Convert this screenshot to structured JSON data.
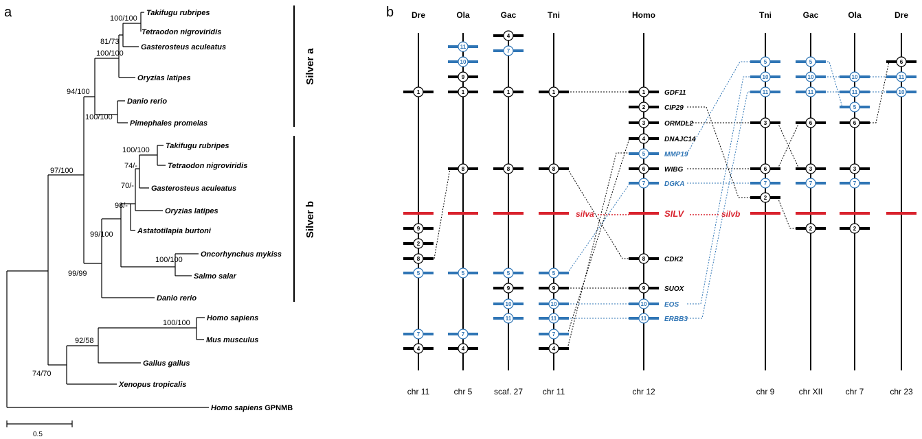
{
  "panel_a": {
    "label": "a",
    "tree_taxa": [
      {
        "id": "tr1",
        "name": "Takifugu rubripes"
      },
      {
        "id": "tn1",
        "name": "Tetraodon nigroviridis"
      },
      {
        "id": "ga1",
        "name": "Gasterosteus aculeatus"
      },
      {
        "id": "ol1",
        "name": "Oryzias latipes"
      },
      {
        "id": "dr1",
        "name": "Danio rerio"
      },
      {
        "id": "pp1",
        "name": "Pimephales promelas"
      },
      {
        "id": "tr2",
        "name": "Takifugu rubripes"
      },
      {
        "id": "tn2",
        "name": "Tetraodon nigroviridis"
      },
      {
        "id": "ga2",
        "name": "Gasterosteus aculeatus"
      },
      {
        "id": "ol2",
        "name": "Oryzias latipes"
      },
      {
        "id": "ab2",
        "name": "Astatotilapia burtoni"
      },
      {
        "id": "om2",
        "name": "Oncorhynchus mykiss"
      },
      {
        "id": "ss2",
        "name": "Salmo salar"
      },
      {
        "id": "dr2",
        "name": "Danio rerio"
      },
      {
        "id": "hs",
        "name": "Homo sapiens"
      },
      {
        "id": "mm",
        "name": "Mus musculus"
      },
      {
        "id": "gg",
        "name": "Gallus gallus"
      },
      {
        "id": "xt",
        "name": "Xenopus tropicalis"
      }
    ],
    "outgroup": {
      "species": "Homo sapiens",
      "gene": "GPNMB"
    },
    "support": [
      {
        "id": "fugu_tetra_a",
        "value": "100/100"
      },
      {
        "id": "gasterosteus_a",
        "value": "81/73"
      },
      {
        "id": "oryzias_a",
        "value": "100/100"
      },
      {
        "id": "silver_a",
        "value": "94/100"
      },
      {
        "id": "cyprinid_a",
        "value": "100/100"
      },
      {
        "id": "fugu_tetra_b",
        "value": "100/100"
      },
      {
        "id": "gasterosteus_b",
        "value": "74/-"
      },
      {
        "id": "oryzias_b",
        "value": "70/-"
      },
      {
        "id": "astatotilapia_b",
        "value": "98/-"
      },
      {
        "id": "salmonid_b",
        "value": "100/100"
      },
      {
        "id": "euteleost_b",
        "value": "99/100"
      },
      {
        "id": "silver_b",
        "value": "99/99"
      },
      {
        "id": "teleost",
        "value": "97/100"
      },
      {
        "id": "mammal",
        "value": "100/100"
      },
      {
        "id": "amniote",
        "value": "92/58"
      },
      {
        "id": "tetrapod",
        "value": "74/70"
      }
    ],
    "clades": [
      {
        "id": "silver_a",
        "name": "Silver a"
      },
      {
        "id": "silver_b",
        "name": "Silver b"
      }
    ],
    "scale_label": "0.5"
  },
  "panel_b": {
    "label": "b",
    "colors": {
      "black": "#000000",
      "blue": "#2f75b5",
      "red": "#d9232e"
    },
    "columns": [
      {
        "id": "dre_a",
        "species": "Dre",
        "chromosome": "chr 11"
      },
      {
        "id": "ola_a",
        "species": "Ola",
        "chromosome": "chr 5"
      },
      {
        "id": "gac_a",
        "species": "Gac",
        "chromosome": "scaf. 27"
      },
      {
        "id": "tni_a",
        "species": "Tni",
        "chromosome": "chr 11"
      },
      {
        "id": "homo",
        "species": "Homo",
        "chromosome": "chr 12"
      },
      {
        "id": "tni_b",
        "species": "Tni",
        "chromosome": "chr 9"
      },
      {
        "id": "gac_b",
        "species": "Gac",
        "chromosome": "chr XII"
      },
      {
        "id": "ola_b",
        "species": "Ola",
        "chromosome": "chr 7"
      },
      {
        "id": "dre_b",
        "species": "Dre",
        "chromosome": "chr 23"
      }
    ],
    "homo_genes": [
      {
        "num": "1",
        "name": "GDF11",
        "color": "black"
      },
      {
        "num": "2",
        "name": "CIP29",
        "color": "black"
      },
      {
        "num": "3",
        "name": "ORMDL2",
        "color": "black"
      },
      {
        "num": "4",
        "name": "DNAJC14",
        "color": "black"
      },
      {
        "num": "5",
        "name": "MMP19",
        "color": "blue"
      },
      {
        "num": "6",
        "name": "WIBG",
        "color": "black"
      },
      {
        "num": "7",
        "name": "DGKA",
        "color": "blue"
      },
      {
        "num": "8",
        "name": "CDK2",
        "color": "black"
      },
      {
        "num": "9",
        "name": "SUOX",
        "color": "black"
      },
      {
        "num": "10",
        "name": "EOS",
        "color": "blue"
      },
      {
        "num": "11",
        "name": "ERBB3",
        "color": "blue"
      }
    ],
    "silver_labels": {
      "silva": "silva",
      "silv": "SILV",
      "silvb": "silvb"
    },
    "markers": {
      "dre_a": [
        {
          "num": "1",
          "color": "black"
        },
        {
          "num": "9",
          "color": "black"
        },
        {
          "num": "2",
          "color": "black"
        },
        {
          "num": "8",
          "color": "black"
        },
        {
          "num": "5",
          "color": "blue"
        },
        {
          "num": "7",
          "color": "blue"
        },
        {
          "num": "4",
          "color": "black"
        }
      ],
      "ola_a": [
        {
          "num": "11",
          "color": "blue"
        },
        {
          "num": "10",
          "color": "blue"
        },
        {
          "num": "9",
          "color": "black"
        },
        {
          "num": "1",
          "color": "black"
        },
        {
          "num": "8",
          "color": "black"
        },
        {
          "num": "5",
          "color": "blue"
        },
        {
          "num": "7",
          "color": "blue"
        },
        {
          "num": "4",
          "color": "black"
        }
      ],
      "gac_a": [
        {
          "num": "4",
          "color": "black"
        },
        {
          "num": "7",
          "color": "blue"
        },
        {
          "num": "1",
          "color": "black"
        },
        {
          "num": "8",
          "color": "black"
        },
        {
          "num": "5",
          "color": "blue"
        },
        {
          "num": "9",
          "color": "black"
        },
        {
          "num": "10",
          "color": "blue"
        },
        {
          "num": "11",
          "color": "blue"
        }
      ],
      "tni_a": [
        {
          "num": "1",
          "color": "black"
        },
        {
          "num": "8",
          "color": "black"
        },
        {
          "num": "5",
          "color": "blue"
        },
        {
          "num": "9",
          "color": "black"
        },
        {
          "num": "10",
          "color": "blue"
        },
        {
          "num": "11",
          "color": "blue"
        },
        {
          "num": "7",
          "color": "blue"
        },
        {
          "num": "4",
          "color": "black"
        }
      ],
      "tni_b": [
        {
          "num": "5",
          "color": "blue"
        },
        {
          "num": "10",
          "color": "blue"
        },
        {
          "num": "11",
          "color": "blue"
        },
        {
          "num": "3",
          "color": "black"
        },
        {
          "num": "6",
          "color": "black"
        },
        {
          "num": "7",
          "color": "blue"
        },
        {
          "num": "2",
          "color": "black"
        }
      ],
      "gac_b": [
        {
          "num": "5",
          "color": "blue"
        },
        {
          "num": "10",
          "color": "blue"
        },
        {
          "num": "11",
          "color": "blue"
        },
        {
          "num": "6",
          "color": "black"
        },
        {
          "num": "3",
          "color": "black"
        },
        {
          "num": "7",
          "color": "blue"
        },
        {
          "num": "2",
          "color": "black"
        }
      ],
      "ola_b": [
        {
          "num": "10",
          "color": "blue"
        },
        {
          "num": "11",
          "color": "blue"
        },
        {
          "num": "5",
          "color": "blue"
        },
        {
          "num": "6",
          "color": "black"
        },
        {
          "num": "3",
          "color": "black"
        },
        {
          "num": "7",
          "color": "blue"
        },
        {
          "num": "2",
          "color": "black"
        }
      ],
      "dre_b": [
        {
          "num": "6",
          "color": "black"
        },
        {
          "num": "11",
          "color": "blue"
        },
        {
          "num": "10",
          "color": "blue"
        }
      ]
    }
  }
}
